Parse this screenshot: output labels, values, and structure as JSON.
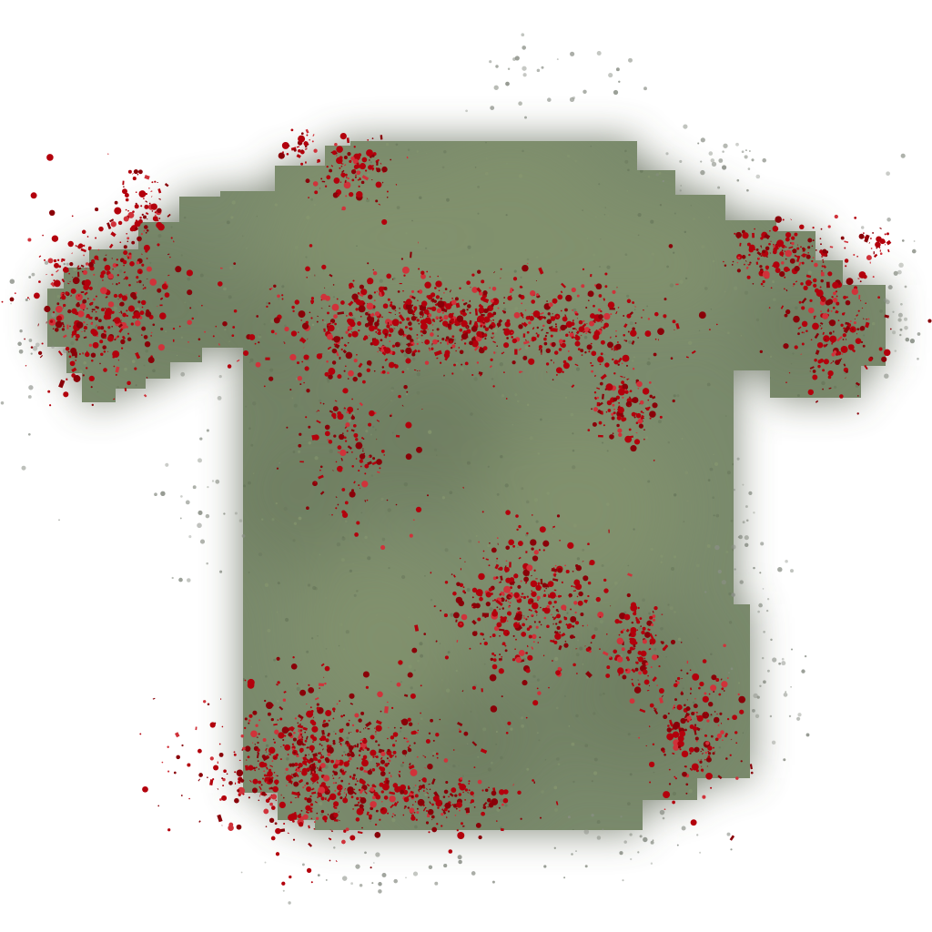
{
  "item": {
    "icon": "bloodstained-shirt-icon",
    "style": "pixel-art inventory sprite",
    "colors": {
      "background": "#ffffff",
      "fabric": "#7a8a6c",
      "fabric_light": "#86976f",
      "fabric_dark": "#667459",
      "shadow": "#4f5a45",
      "blood": "#b3000c",
      "blood_dark": "#8a0008",
      "blood_light": "#d0323a"
    }
  }
}
